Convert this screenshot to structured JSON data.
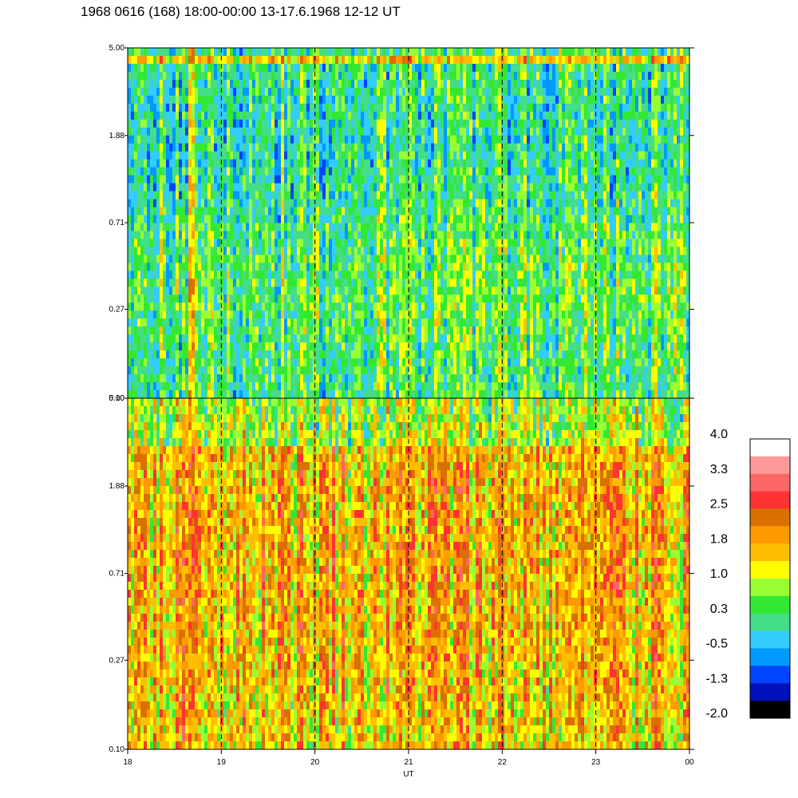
{
  "title": "1968 0616 (168) 18:00-00:00 13-17.6.1968  12-12 UT",
  "chart_data": {
    "type": "heatmap",
    "xlabel": "UT",
    "x_ticks": [
      "18",
      "19",
      "20",
      "21",
      "22",
      "23",
      "00"
    ],
    "x_range_hours": [
      18,
      24
    ],
    "dashed_lines_at_hours": [
      19,
      20,
      21,
      22,
      23
    ],
    "panels": [
      {
        "name": "upper",
        "y_ticks": [
          "5.00",
          "1.88",
          "0.71",
          "0.27",
          "0.10"
        ],
        "y_scale": "log",
        "y_range": [
          0.1,
          5.0
        ],
        "dominant_value_range": [
          -0.5,
          1.0
        ]
      },
      {
        "name": "lower",
        "y_ticks": [
          "5.00",
          "1.88",
          "0.71",
          "0.27",
          "0.10"
        ],
        "y_scale": "log",
        "y_range": [
          0.1,
          5.0
        ],
        "dominant_value_range": [
          0.7,
          2.5
        ]
      }
    ],
    "colorbar": {
      "labels": [
        "4.0",
        "3.3",
        "2.5",
        "1.8",
        "1.0",
        "0.3",
        "-0.5",
        "-1.3",
        "-2.0"
      ],
      "range": [
        -2.0,
        4.0
      ],
      "colors_top_to_bottom": [
        "#ffffff",
        "#ff9999",
        "#ff6666",
        "#ff3333",
        "#d97000",
        "#ff9a00",
        "#ffbf00",
        "#ffff00",
        "#99ff33",
        "#33e833",
        "#44dd88",
        "#33ccff",
        "#0099ff",
        "#0044ff",
        "#0011bb",
        "#000000"
      ]
    }
  }
}
